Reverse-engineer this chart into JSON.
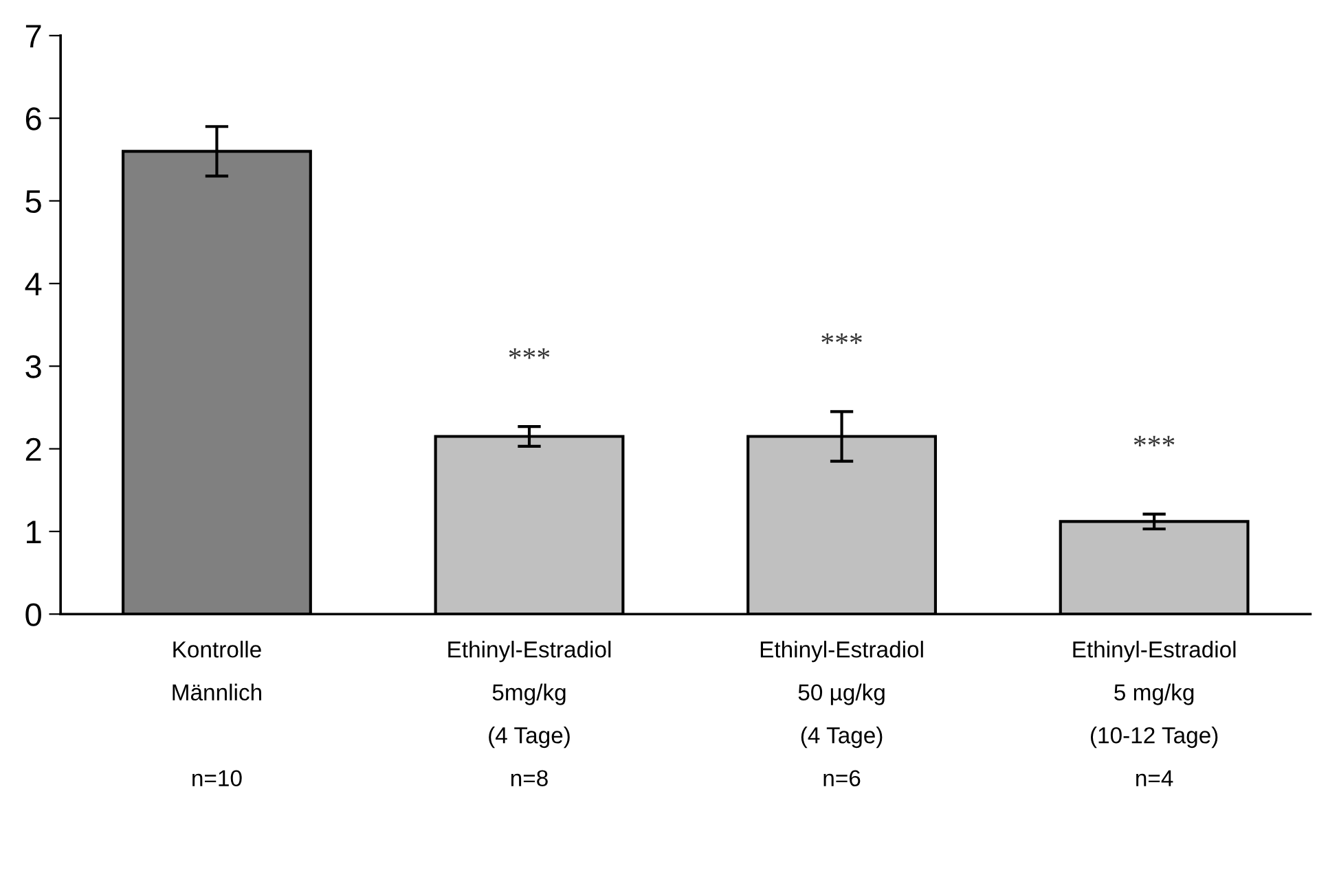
{
  "chart_data": {
    "type": "bar",
    "categories": [
      "Kontrolle\nMännlich\n\nn=10",
      "Ethinyl-Estradiol\n5mg/kg\n(4 Tage)\nn=8",
      "Ethinyl-Estradiol\n50 µg/kg\n(4 Tage)\nn=6",
      "Ethinyl-Estradiol\n5 mg/kg\n(10-12 Tage)\nn=4"
    ],
    "values": [
      5.6,
      2.15,
      2.15,
      1.12
    ],
    "colors": [
      "#808080",
      "#c0c0c0",
      "#c0c0c0",
      "#c0c0c0"
    ],
    "errors": [
      0.3,
      0.12,
      0.3,
      0.09
    ],
    "ylim": [
      0,
      7
    ],
    "yticks": [
      0,
      1,
      2,
      3,
      4,
      5,
      6,
      7
    ],
    "grid": false,
    "legend": false,
    "annotations": [
      "***",
      "***",
      "***"
    ]
  }
}
